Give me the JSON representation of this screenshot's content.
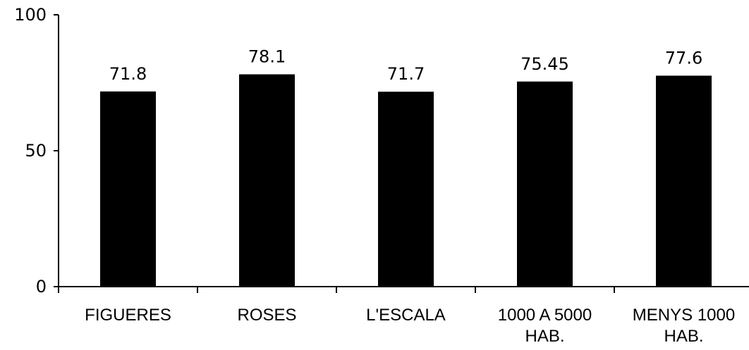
{
  "chart_data": {
    "type": "bar",
    "categories": [
      [
        "FIGUERES"
      ],
      [
        "ROSES"
      ],
      [
        "L'ESCALA"
      ],
      [
        "1000 A 5000",
        "HAB."
      ],
      [
        "MENYS 1000",
        "HAB."
      ]
    ],
    "values": [
      71.8,
      78.1,
      71.7,
      75.45,
      77.6
    ],
    "data_labels": [
      "71.8",
      "78.1",
      "71.7",
      "75.45",
      "77.6"
    ],
    "title": "",
    "xlabel": "",
    "ylabel": "",
    "ylim": [
      0,
      100
    ],
    "y_ticks": [
      {
        "value": 0,
        "label": "0"
      },
      {
        "value": 50,
        "label": "50"
      },
      {
        "value": 100,
        "label": "100"
      }
    ],
    "bar_color": "#000000",
    "grid": false,
    "legend": "none"
  }
}
